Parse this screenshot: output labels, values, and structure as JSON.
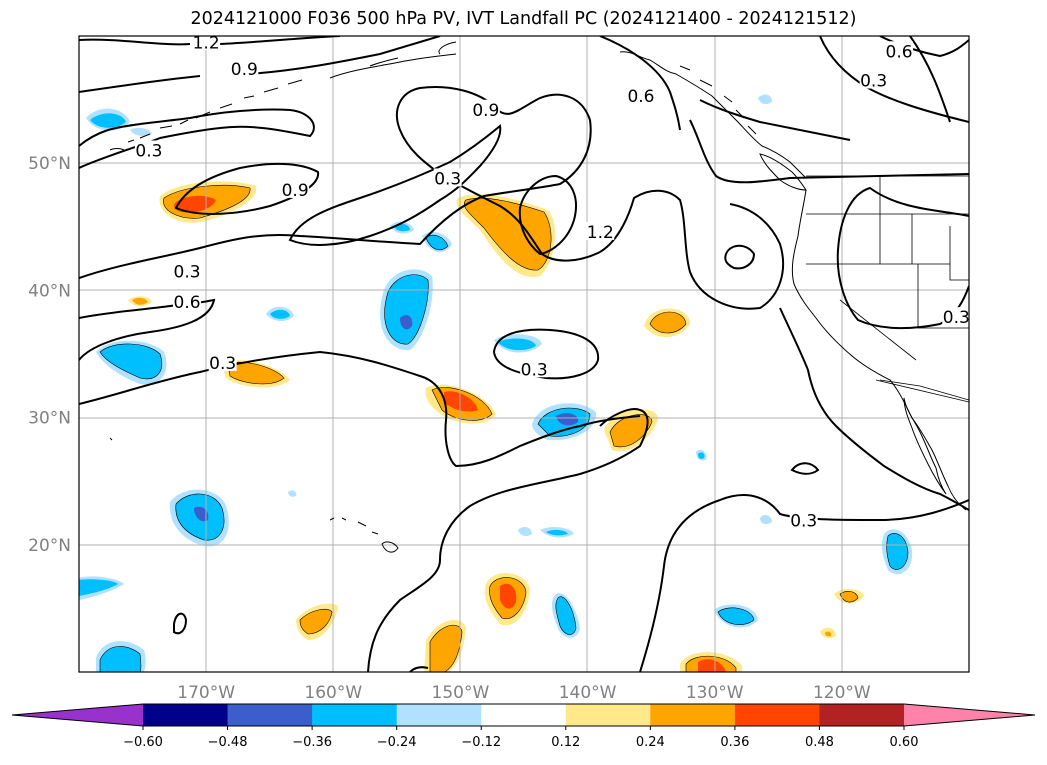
{
  "title": "2024121000 F036 500 hPa PV, IVT Landfall PC (2024121400 - 2024121512)",
  "chart_data": {
    "type": "map",
    "lon_range": [
      -180,
      -110
    ],
    "lat_range": [
      10,
      60
    ],
    "lat_ticks": [
      {
        "value": 20,
        "label": "20°N"
      },
      {
        "value": 30,
        "label": "30°N"
      },
      {
        "value": 40,
        "label": "40°N"
      },
      {
        "value": 50,
        "label": "50°N"
      }
    ],
    "lon_ticks": [
      {
        "value": -170,
        "label": "170°W"
      },
      {
        "value": -160,
        "label": "160°W"
      },
      {
        "value": -150,
        "label": "150°W"
      },
      {
        "value": -140,
        "label": "140°W"
      },
      {
        "value": -130,
        "label": "130°W"
      },
      {
        "value": -120,
        "label": "120°W"
      }
    ],
    "grid": true,
    "contour_levels": [
      0.3,
      0.6,
      0.9,
      1.2
    ],
    "contour_labels": [
      {
        "text": "1.2",
        "lon": -170,
        "lat": 59.5
      },
      {
        "text": "0.9",
        "lon": -167,
        "lat": 57.4
      },
      {
        "text": "0.6",
        "lon": -115.5,
        "lat": 58.8
      },
      {
        "text": "0.3",
        "lon": -117.5,
        "lat": 56.5
      },
      {
        "text": "0.9",
        "lon": -148,
        "lat": 54.2
      },
      {
        "text": "0.6",
        "lon": -135.8,
        "lat": 55.3
      },
      {
        "text": "0.3",
        "lon": -174.5,
        "lat": 51
      },
      {
        "text": "0.3",
        "lon": -151,
        "lat": 48.8
      },
      {
        "text": "0.9",
        "lon": -163,
        "lat": 47.9
      },
      {
        "text": "1.2",
        "lon": -139,
        "lat": 44.6
      },
      {
        "text": "0.3",
        "lon": -171.5,
        "lat": 41.5
      },
      {
        "text": "0.6",
        "lon": -171.5,
        "lat": 39.1
      },
      {
        "text": "0.3",
        "lon": -168.7,
        "lat": 34.3
      },
      {
        "text": "0.3",
        "lon": -144.2,
        "lat": 33.8
      },
      {
        "text": "0.3",
        "lon": -111,
        "lat": 37.9
      },
      {
        "text": "0.3",
        "lon": -123,
        "lat": 21.9
      }
    ],
    "shading_levels": [
      -0.6,
      -0.48,
      -0.36,
      -0.24,
      -0.12,
      0.12,
      0.24,
      0.36,
      0.48,
      0.6
    ],
    "colorbar_colors": [
      "#9932CC",
      "#00008B",
      "#3A5FCD",
      "#00BFFF",
      "#B0E2FF",
      "#FFFFFF",
      "#FFE98A",
      "#FFA500",
      "#FF4500",
      "#B22222",
      "#FF82AB"
    ],
    "colorbar_labels": [
      "−0.60",
      "−0.48",
      "−0.36",
      "−0.24",
      "−0.12",
      "0.12",
      "0.24",
      "0.36",
      "0.48",
      "0.60"
    ]
  }
}
